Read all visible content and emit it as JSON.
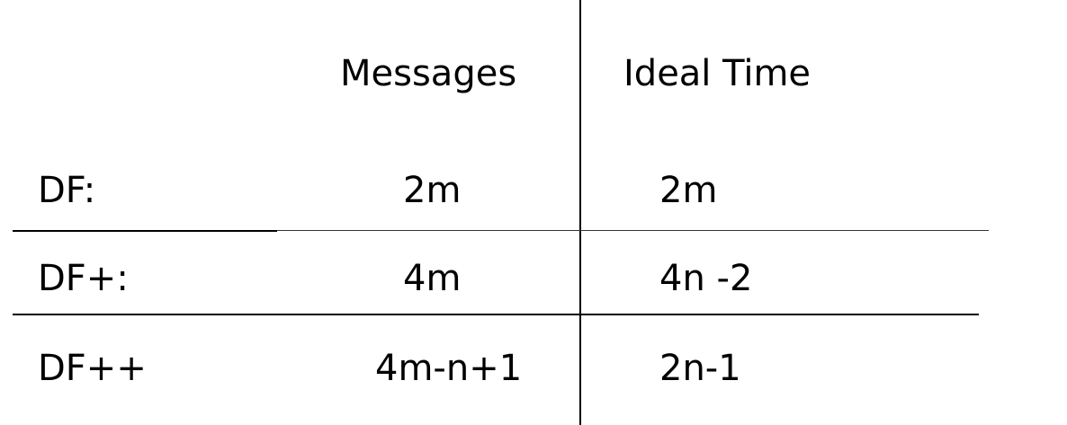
{
  "table": {
    "headers": {
      "messages": "Messages",
      "ideal_time": "Ideal Time"
    },
    "rows": [
      {
        "label": "DF:",
        "messages": "2m",
        "ideal_time": "2m"
      },
      {
        "label": "DF+:",
        "messages": "4m",
        "ideal_time": "4n -2"
      },
      {
        "label": "DF++",
        "messages": "4m-n+1",
        "ideal_time": "2n-1"
      }
    ]
  }
}
